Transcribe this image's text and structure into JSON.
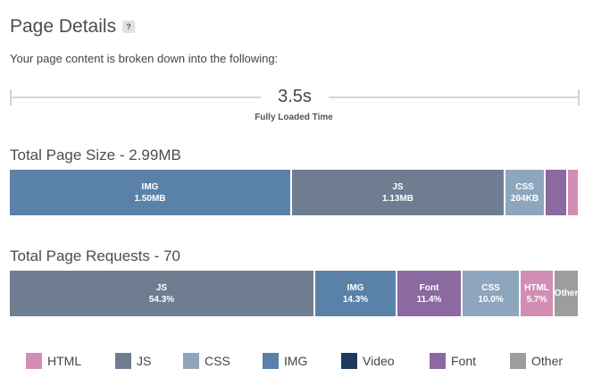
{
  "header": {
    "title": "Page Details",
    "help_label": "?",
    "intro": "Your page content is broken down into the following:"
  },
  "timeline": {
    "value": "3.5s",
    "label": "Fully Loaded Time"
  },
  "colors": {
    "HTML": "#d28db5",
    "JS": "#6f7d90",
    "CSS": "#8ea6bd",
    "IMG": "#5a82a8",
    "Video": "#1c3a5b",
    "Font": "#8a6aa0",
    "Other": "#9d9d9d"
  },
  "chart_data": [
    {
      "type": "bar",
      "title": "Total Page Size - 2.99MB",
      "stacked": true,
      "segments": [
        {
          "category": "IMG",
          "value_label": "1.50MB",
          "share": 0.5
        },
        {
          "category": "JS",
          "value_label": "1.13MB",
          "share": 0.378
        },
        {
          "category": "CSS",
          "value_label": "204KB",
          "share": 0.068
        },
        {
          "category": "Font",
          "value_label": "",
          "share": 0.036
        },
        {
          "category": "HTML",
          "value_label": "",
          "share": 0.018
        }
      ]
    },
    {
      "type": "bar",
      "title": "Total Page Requests - 70",
      "stacked": true,
      "segments": [
        {
          "category": "JS",
          "value_label": "54.3%",
          "share": 0.543
        },
        {
          "category": "IMG",
          "value_label": "14.3%",
          "share": 0.143
        },
        {
          "category": "Font",
          "value_label": "11.4%",
          "share": 0.114
        },
        {
          "category": "CSS",
          "value_label": "10.0%",
          "share": 0.1
        },
        {
          "category": "HTML",
          "value_label": "5.7%",
          "share": 0.057
        },
        {
          "category": "Other",
          "value_label": "",
          "share": 0.043
        }
      ]
    }
  ],
  "legend": [
    "HTML",
    "JS",
    "CSS",
    "IMG",
    "Video",
    "Font",
    "Other"
  ]
}
